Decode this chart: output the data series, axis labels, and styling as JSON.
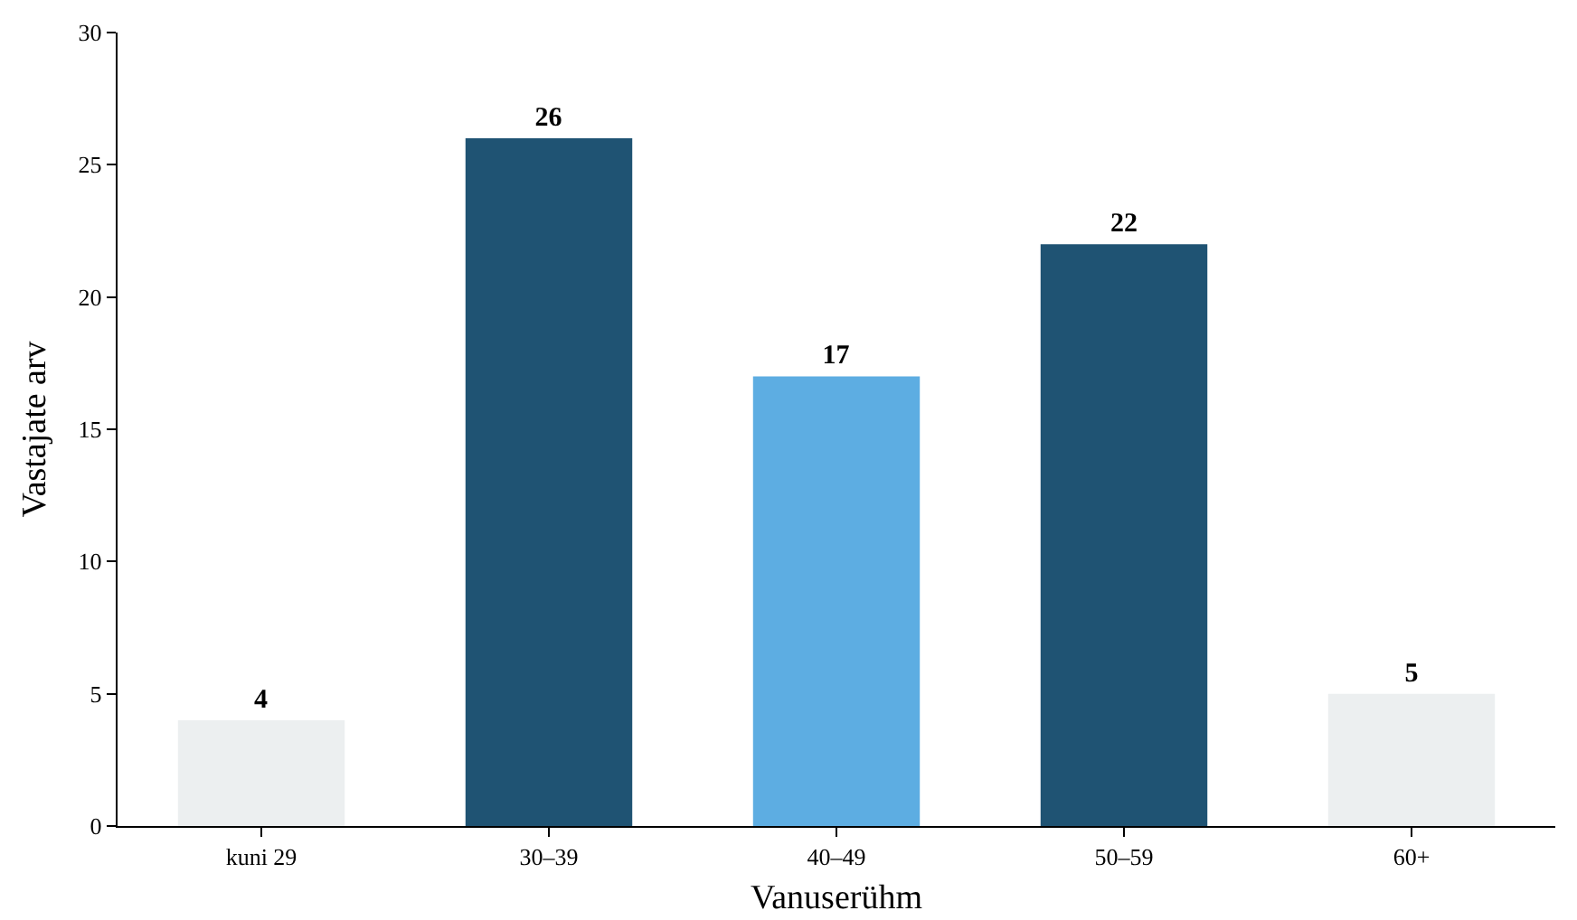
{
  "chart_data": {
    "type": "bar",
    "xlabel": "Vanuserühm",
    "ylabel": "Vastajate arv",
    "categories": [
      "kuni 29",
      "30–39",
      "40–49",
      "50–59",
      "60+"
    ],
    "values": [
      4,
      26,
      17,
      22,
      5
    ],
    "colors": [
      "#eceff0",
      "#1f5373",
      "#5dade2",
      "#1f5373",
      "#eceff0"
    ],
    "ylim": [
      0,
      30
    ],
    "yticks": [
      0,
      5,
      10,
      15,
      20,
      25,
      30
    ],
    "grid": false,
    "data_labels": true
  }
}
